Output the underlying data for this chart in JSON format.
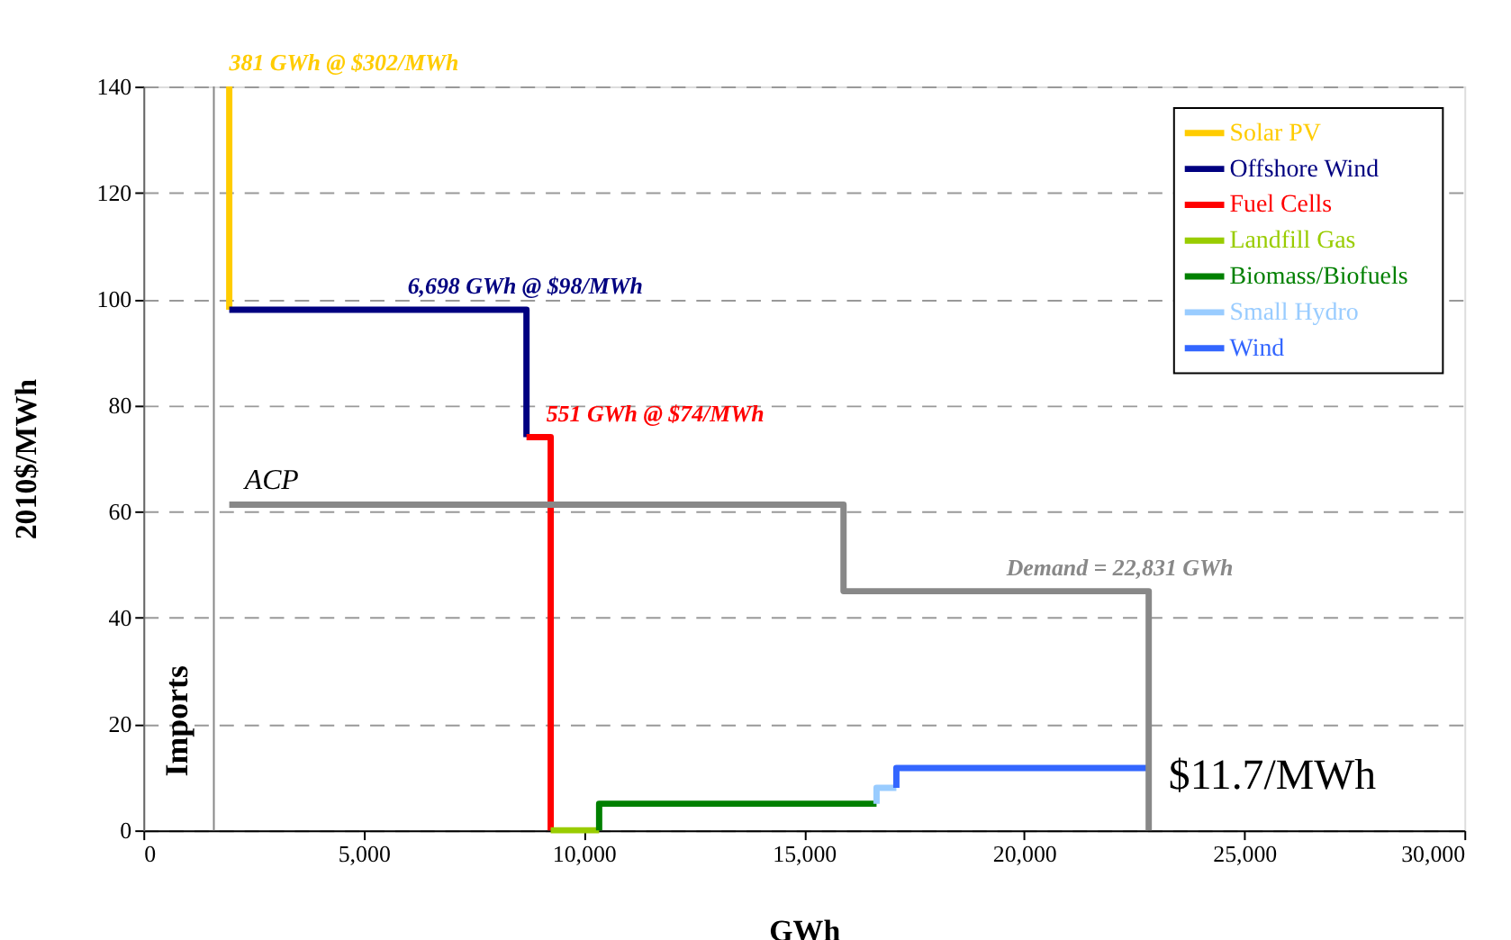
{
  "chart_data": {
    "type": "step",
    "xlabel": "GWh",
    "ylabel": "2010$/MWh",
    "xlim": [
      0,
      30000
    ],
    "xticks": [
      0,
      {
        "value": 5000,
        "label": "5,000"
      },
      {
        "value": 10000,
        "label": "10,000"
      },
      {
        "value": 15000,
        "label": "15,000"
      },
      {
        "value": 20000,
        "label": "20,000"
      },
      {
        "value": 25000,
        "label": "25,000"
      },
      {
        "value": 30000,
        "label": "30,000"
      }
    ],
    "ylim": [
      0,
      140
    ],
    "yticks": [
      0,
      20,
      40,
      60,
      80,
      100,
      120,
      140
    ],
    "grid": "y",
    "legend": "top right",
    "line_style": "solid",
    "marker": "none",
    "series": [
      {
        "name": "Solar PV",
        "color": "#ffcc00",
        "x": [
          1950,
          1950
        ],
        "values": [
          140,
          98
        ]
      },
      {
        "name": "Offshore Wind",
        "color": "#000080",
        "x": [
          1950,
          8700,
          8700
        ],
        "values": [
          98,
          98,
          74
        ]
      },
      {
        "name": "Fuel Cells",
        "color": "#ff0000",
        "x": [
          8700,
          9250,
          9250
        ],
        "values": [
          74,
          74,
          0
        ]
      },
      {
        "name": "Landfill Gas",
        "color": "#99cc00",
        "x": [
          9250,
          10350
        ],
        "values": [
          0,
          0
        ]
      },
      {
        "name": "Biomass/Biofuels",
        "color": "#008000",
        "x": [
          10350,
          10350,
          16650
        ],
        "values": [
          0,
          5,
          5
        ]
      },
      {
        "name": "Small Hydro",
        "color": "#99ccff",
        "x": [
          16650,
          16650,
          17100
        ],
        "values": [
          5,
          8,
          8
        ]
      },
      {
        "name": "Wind",
        "color": "#3366ff",
        "x": [
          17100,
          17100,
          22831
        ],
        "values": [
          8,
          11.7,
          11.7
        ]
      },
      {
        "color": "#888888",
        "x": [
          1950,
          15900,
          15900,
          22831,
          22831
        ],
        "values": [
          61.3,
          61.3,
          45,
          45,
          0
        ]
      }
    ],
    "ref_lines": [
      {
        "axis": "x",
        "value": 1600,
        "label": "Imports",
        "color": "#888888"
      }
    ],
    "annotations": [
      {
        "text": "381 GWh @ $302/MWh",
        "x": 1950,
        "y": 140
      },
      {
        "text": "6,698 GWh @ $98/MWh",
        "x": 6000,
        "y": 98
      },
      {
        "text": "551 GWh @ $74/MWh",
        "x": 9150,
        "y": 74
      },
      {
        "text": "ACP",
        "x": 2300,
        "y": 61.3
      },
      {
        "text": "Demand = 22,831 GWh",
        "x": 19600,
        "y": 45
      },
      "$11.7/MWh"
    ]
  }
}
